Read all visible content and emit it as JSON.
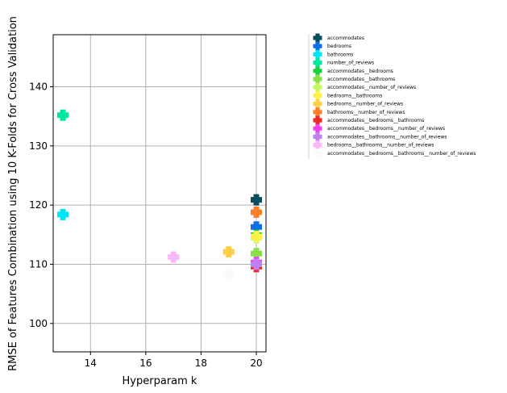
{
  "chart_data": {
    "type": "scatter",
    "xlabel": "Hyperparam k",
    "ylabel": "RMSE of Features Combination using 10 K-Folds for Cross Validation",
    "xlim": [
      12.65,
      20.35
    ],
    "ylim": [
      95.2,
      148.8
    ],
    "xticks": [
      14,
      16,
      18,
      20
    ],
    "yticks": [
      100,
      110,
      120,
      130,
      140
    ],
    "grid": true,
    "legend_position": "right, outside plot",
    "marker": "plus (filled)",
    "series": [
      {
        "name": "accommodates",
        "color": "#084d5c",
        "points": [
          {
            "x": 20,
            "y": 120.9
          }
        ]
      },
      {
        "name": "bedrooms",
        "color": "#0a6fe8",
        "points": [
          {
            "x": 20,
            "y": 116.3
          }
        ]
      },
      {
        "name": "bathrooms",
        "color": "#00e5f5",
        "points": [
          {
            "x": 13,
            "y": 118.4
          }
        ]
      },
      {
        "name": "number_of_reviews",
        "color": "#00e8a0",
        "points": [
          {
            "x": 13,
            "y": 135.2
          }
        ]
      },
      {
        "name": "accommodates__bedrooms",
        "color": "#18d040",
        "points": [
          {
            "x": 20,
            "y": 114.9
          }
        ]
      },
      {
        "name": "accommodates__bathrooms",
        "color": "#88e048",
        "points": [
          {
            "x": 20,
            "y": 111.8
          }
        ]
      },
      {
        "name": "accommodates__number_of_reviews",
        "color": "#c8f860",
        "points": [
          {
            "x": 20,
            "y": 114.5
          }
        ]
      },
      {
        "name": "bedrooms__bathrooms",
        "color": "#fff048",
        "points": [
          {
            "x": 20,
            "y": 114.7
          }
        ]
      },
      {
        "name": "bedrooms__number_of_reviews",
        "color": "#ffcf48",
        "points": [
          {
            "x": 19,
            "y": 112.1
          }
        ]
      },
      {
        "name": "bathrooms__number_of_reviews",
        "color": "#ff7f28",
        "points": [
          {
            "x": 20,
            "y": 118.8
          }
        ]
      },
      {
        "name": "accommodates__bedrooms__bathrooms",
        "color": "#f02828",
        "points": [
          {
            "x": 20,
            "y": 109.6
          }
        ]
      },
      {
        "name": "accommodates__bedrooms__number_of_reviews",
        "color": "#f040f0",
        "points": [
          {
            "x": 20,
            "y": 110.3
          }
        ]
      },
      {
        "name": "accommodates__bathrooms__number_of_reviews",
        "color": "#c080f0",
        "points": [
          {
            "x": 20,
            "y": 110.0
          }
        ]
      },
      {
        "name": "bedrooms__bathrooms__number_of_reviews",
        "color": "#f8b8f8",
        "points": [
          {
            "x": 17,
            "y": 111.2
          }
        ]
      },
      {
        "name": "accommodates__bedrooms__bathrooms__number_of_reviews",
        "color": "#fafafa",
        "points": [
          {
            "x": 19,
            "y": 108.3
          }
        ]
      }
    ]
  }
}
